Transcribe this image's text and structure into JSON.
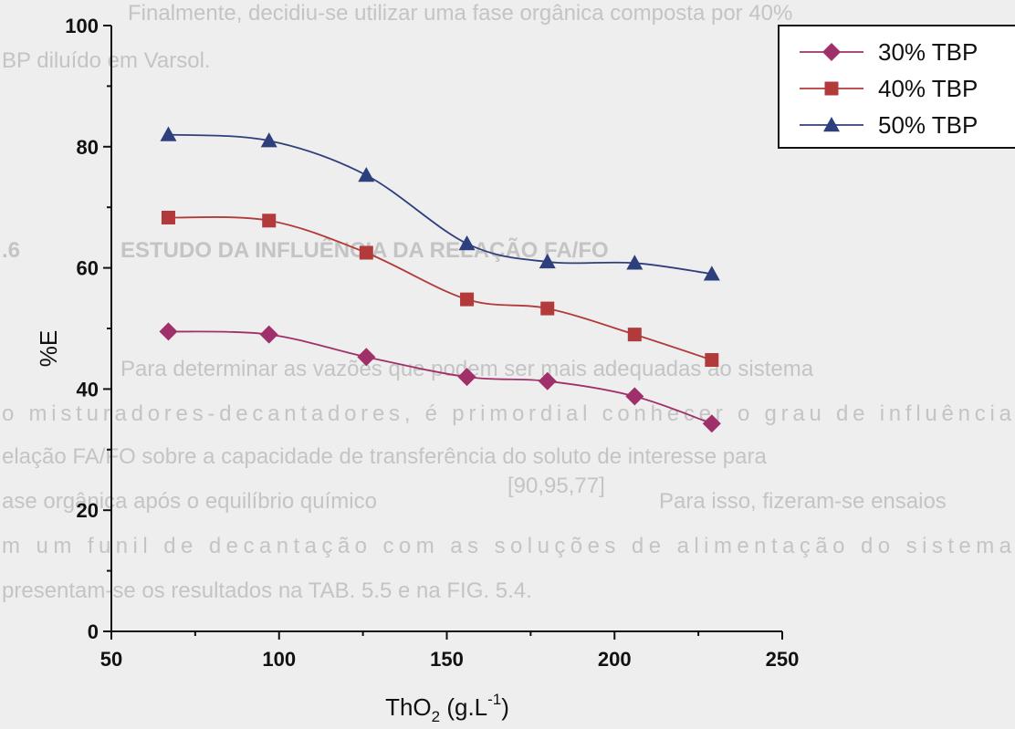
{
  "background_text": {
    "lines": [
      "Finalmente, decidiu-se utilizar uma fase orgânica composta por 40%",
      "BP diluído em Varsol.",
      ".6",
      "ESTUDO DA INFLUÊNCIA DA RELAÇÃO FA/FO",
      "Para determinar as vazões que podem ser mais adequadas ao sistema",
      "o misturadores-decantadores, é primordial conhecer o grau de influência",
      "elação FA/FO sobre a capacidade de transferência do soluto de interesse para",
      "ase orgânica após o equilíbrio químico",
      "Para isso, fizeram-se ensaios",
      "m um funil de decantação com as soluções de alimentação do sistema",
      "presentam-se os resultados na TAB. 5.5 e na FIG. 5.4."
    ],
    "citation": "[90,95,77]"
  },
  "chart_data": {
    "type": "line",
    "title": "",
    "xlabel": "ThO",
    "xlabel_sub": "2",
    "xlabel_unit_open": " (g.L",
    "xlabel_sup": "-1",
    "xlabel_unit_close": ")",
    "ylabel": "%E",
    "xlim": [
      50,
      250
    ],
    "ylim": [
      0,
      100
    ],
    "xticks": [
      50,
      100,
      150,
      200,
      250
    ],
    "yticks": [
      0,
      20,
      40,
      60,
      80,
      100
    ],
    "grid": false,
    "legend_position": "top-right",
    "series": [
      {
        "name": "30% TBP",
        "marker": "diamond",
        "color": "#a0306a",
        "points": [
          [
            67,
            49.5
          ],
          [
            97,
            49
          ],
          [
            126,
            45.3
          ],
          [
            156,
            42
          ],
          [
            180,
            41.3
          ],
          [
            206,
            38.8
          ],
          [
            229,
            34.3
          ]
        ]
      },
      {
        "name": "40% TBP",
        "marker": "square",
        "color": "#b23a3a",
        "points": [
          [
            67,
            68.3
          ],
          [
            97,
            67.8
          ],
          [
            126,
            62.5
          ],
          [
            156,
            54.8
          ],
          [
            180,
            53.3
          ],
          [
            206,
            49
          ],
          [
            229,
            44.8
          ]
        ]
      },
      {
        "name": "50% TBP",
        "marker": "triangle",
        "color": "#2e3f7e",
        "points": [
          [
            67,
            82
          ],
          [
            97,
            81
          ],
          [
            126,
            75.3
          ],
          [
            156,
            64
          ],
          [
            180,
            61
          ],
          [
            206,
            60.8
          ],
          [
            229,
            59
          ]
        ]
      }
    ]
  }
}
